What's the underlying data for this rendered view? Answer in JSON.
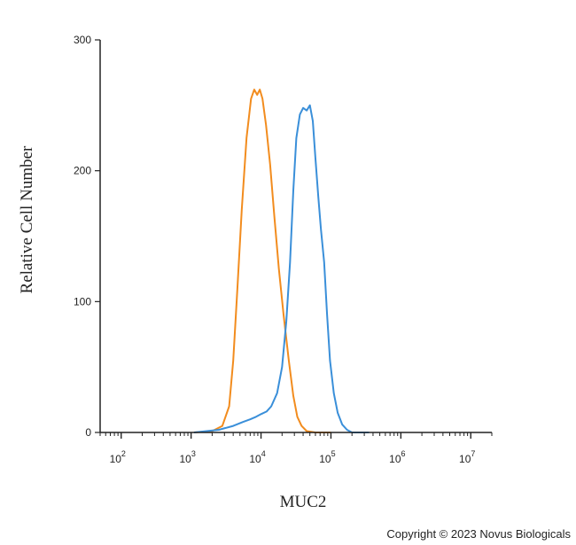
{
  "chart_data": {
    "type": "line",
    "title": "",
    "xlabel": "MUC2",
    "ylabel": "Relative Cell Number",
    "x_scale": "log",
    "xlim": [
      50,
      20000000
    ],
    "ylim": [
      0,
      300
    ],
    "y_ticks": [
      0,
      100,
      200,
      300
    ],
    "x_ticks": [
      {
        "base": "10",
        "exp": "2"
      },
      {
        "base": "10",
        "exp": "3"
      },
      {
        "base": "10",
        "exp": "4"
      },
      {
        "base": "10",
        "exp": "5"
      },
      {
        "base": "10",
        "exp": "6"
      },
      {
        "base": "10",
        "exp": "7"
      }
    ],
    "grid": false,
    "legend": "none",
    "series": [
      {
        "color": "#f28c1e",
        "x": [
          1100,
          2000,
          2800,
          3500,
          4000,
          4600,
          5300,
          6200,
          7200,
          8000,
          8800,
          9600,
          10500,
          11800,
          13500,
          15500,
          18000,
          21000,
          25000,
          29000,
          33000,
          38000,
          45000,
          60000,
          100000
        ],
        "y": [
          0,
          1,
          5,
          20,
          55,
          110,
          170,
          225,
          255,
          262,
          258,
          262,
          255,
          235,
          205,
          165,
          125,
          90,
          55,
          28,
          12,
          5,
          1,
          0,
          0
        ]
      },
      {
        "color": "#3a8fd9",
        "x": [
          1100,
          2500,
          4000,
          5500,
          7000,
          8500,
          10000,
          12000,
          14000,
          17000,
          20000,
          23000,
          26000,
          29000,
          32000,
          36000,
          40000,
          45000,
          50000,
          55000,
          60000,
          66000,
          72000,
          80000,
          88000,
          97000,
          110000,
          125000,
          145000,
          170000,
          200000,
          260000,
          350000
        ],
        "y": [
          0,
          2,
          5,
          8,
          10,
          12,
          14,
          16,
          20,
          30,
          50,
          85,
          130,
          185,
          225,
          243,
          248,
          246,
          250,
          238,
          210,
          180,
          155,
          130,
          90,
          55,
          30,
          15,
          6,
          2,
          0,
          0,
          0
        ]
      }
    ]
  },
  "copyright": "Copyright © 2023 Novus Biologicals"
}
